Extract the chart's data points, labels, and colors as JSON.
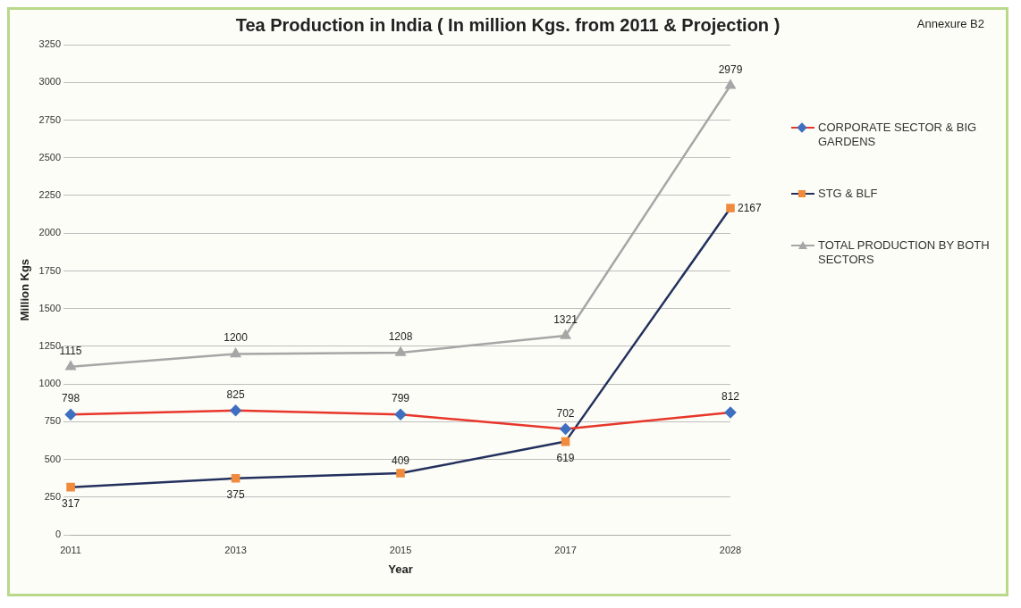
{
  "chart_data": {
    "type": "line",
    "title": "Tea Production in India ( In million Kgs. from 2011 & Projection )",
    "xlabel": "Year",
    "ylabel": "Million Kgs",
    "annotations": [
      "Annexure B2"
    ],
    "categories": [
      "2011",
      "2013",
      "2015",
      "2017",
      "2028"
    ],
    "series": [
      {
        "name": "CORPORATE SECTOR & BIG GARDENS",
        "color": "#e8362a",
        "colors": [
          "#3f6fc0",
          "#3f6fc0",
          "#3f6fc0",
          "#3f6fc0",
          "#3f6fc0"
        ],
        "marker": "diamond",
        "values": [
          798,
          825,
          799,
          702,
          812
        ]
      },
      {
        "name": "STG & BLF",
        "color": "#24305e",
        "colors": [
          "#f08a3c",
          "#f08a3c",
          "#f08a3c",
          "#f08a3c",
          "#f08a3c"
        ],
        "marker": "square",
        "values": [
          317,
          375,
          409,
          619,
          2167
        ]
      },
      {
        "name": "TOTAL PRODUCTION BY BOTH SECTORS",
        "color": "#a6a6a6",
        "colors": [
          "#a6a6a6",
          "#a6a6a6",
          "#a6a6a6",
          "#a6a6a6",
          "#a6a6a6"
        ],
        "marker": "triangle",
        "values": [
          1115,
          1200,
          1208,
          1321,
          2979
        ]
      }
    ],
    "ylim": [
      0,
      3250
    ],
    "yticks": [
      0,
      250,
      500,
      750,
      1000,
      1250,
      1500,
      1750,
      2000,
      2250,
      2500,
      2750,
      3000,
      3250
    ],
    "grid": "y",
    "legend": "right",
    "data_labels": true
  }
}
